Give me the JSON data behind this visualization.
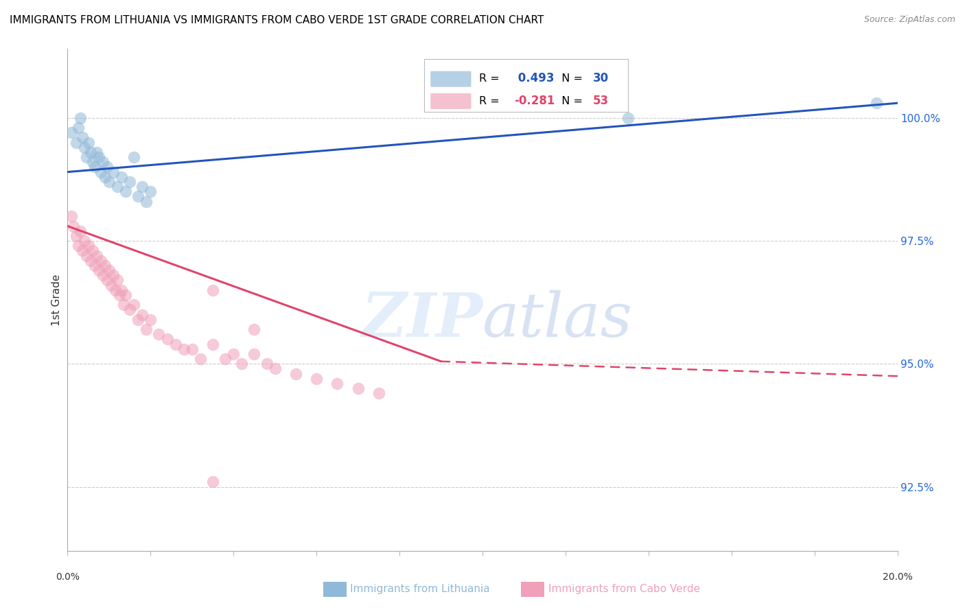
{
  "title": "IMMIGRANTS FROM LITHUANIA VS IMMIGRANTS FROM CABO VERDE 1ST GRADE CORRELATION CHART",
  "source": "Source: ZipAtlas.com",
  "ylabel": "1st Grade",
  "color_blue": "#90b8d8",
  "color_pink": "#f0a0b8",
  "color_blue_line": "#2255bb",
  "color_pink_line": "#e0446a",
  "xlim": [
    0.0,
    20.0
  ],
  "ylim": [
    91.2,
    101.4
  ],
  "yticks": [
    92.5,
    95.0,
    97.5,
    100.0
  ],
  "ytick_labels": [
    "92.5%",
    "95.0%",
    "97.5%",
    "100.0%"
  ],
  "blue_x": [
    0.1,
    0.2,
    0.25,
    0.3,
    0.35,
    0.4,
    0.45,
    0.5,
    0.55,
    0.6,
    0.65,
    0.7,
    0.75,
    0.8,
    0.85,
    0.9,
    0.95,
    1.0,
    1.1,
    1.2,
    1.3,
    1.4,
    1.5,
    1.6,
    1.7,
    1.8,
    1.9,
    2.0,
    13.5,
    19.5
  ],
  "blue_y": [
    99.7,
    99.5,
    99.8,
    100.0,
    99.6,
    99.4,
    99.2,
    99.5,
    99.3,
    99.1,
    99.0,
    99.3,
    99.2,
    98.9,
    99.1,
    98.8,
    99.0,
    98.7,
    98.9,
    98.6,
    98.8,
    98.5,
    98.7,
    99.2,
    98.4,
    98.6,
    98.3,
    98.5,
    100.0,
    100.3
  ],
  "pink_x": [
    0.1,
    0.15,
    0.2,
    0.25,
    0.3,
    0.35,
    0.4,
    0.45,
    0.5,
    0.55,
    0.6,
    0.65,
    0.7,
    0.75,
    0.8,
    0.85,
    0.9,
    0.95,
    1.0,
    1.05,
    1.1,
    1.15,
    1.2,
    1.25,
    1.3,
    1.35,
    1.4,
    1.5,
    1.6,
    1.7,
    1.8,
    1.9,
    2.0,
    2.2,
    2.4,
    2.6,
    2.8,
    3.0,
    3.2,
    3.5,
    3.8,
    4.0,
    4.2,
    4.5,
    4.8,
    5.0,
    5.5,
    6.0,
    6.5,
    7.0,
    7.5,
    3.5,
    4.5
  ],
  "pink_y": [
    98.0,
    97.8,
    97.6,
    97.4,
    97.7,
    97.3,
    97.5,
    97.2,
    97.4,
    97.1,
    97.3,
    97.0,
    97.2,
    96.9,
    97.1,
    96.8,
    97.0,
    96.7,
    96.9,
    96.6,
    96.8,
    96.5,
    96.7,
    96.4,
    96.5,
    96.2,
    96.4,
    96.1,
    96.2,
    95.9,
    96.0,
    95.7,
    95.9,
    95.6,
    95.5,
    95.4,
    95.3,
    95.3,
    95.1,
    95.4,
    95.1,
    95.2,
    95.0,
    95.2,
    95.0,
    94.9,
    94.8,
    94.7,
    94.6,
    94.5,
    94.4,
    96.5,
    95.7
  ],
  "pink_outlier_x": [
    3.5
  ],
  "pink_outlier_y": [
    92.6
  ],
  "blue_line_x0": 0.0,
  "blue_line_x1": 20.0,
  "blue_line_y0": 98.9,
  "blue_line_y1": 100.3,
  "pink_solid_x0": 0.0,
  "pink_solid_x1": 9.0,
  "pink_solid_y0": 97.8,
  "pink_solid_y1": 95.05,
  "pink_dashed_x0": 9.0,
  "pink_dashed_x1": 20.0,
  "pink_dashed_y0": 95.05,
  "pink_dashed_y1": 94.75
}
